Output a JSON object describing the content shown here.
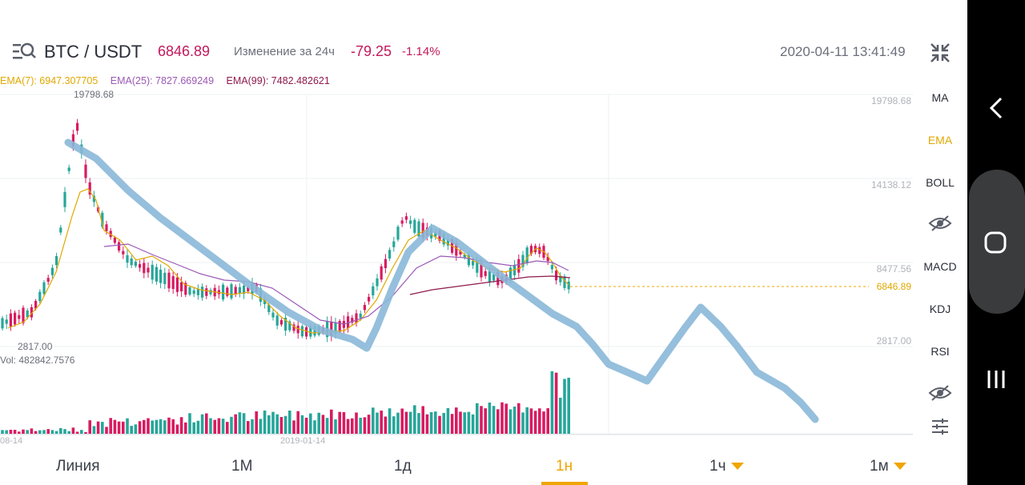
{
  "header": {
    "pair": "BTC / USDT",
    "price": "6846.89",
    "change_label": "Изменение за 24ч",
    "change_abs": "-79.25",
    "change_pct": "-1.14%",
    "datetime": "2020-04-11 13:41:49",
    "menu_icon": "list-search-icon",
    "collapse_icon": "collapse-arrows-icon"
  },
  "ema": {
    "ema7": "EMA(7): 6947.307705",
    "ema25": "EMA(25): 7827.669249",
    "ema99": "EMA(99): 7482.482621"
  },
  "chart": {
    "high_label": "19798.68",
    "low_label": "2817.00",
    "y_ticks": [
      "19798.68",
      "14138.12",
      "8477.56",
      "2817.00"
    ],
    "current_price": "6846.89",
    "volume_label": "Vol: 482842.7576",
    "x_ticks": [
      "08-14",
      "2019-01-14"
    ]
  },
  "side_menu": {
    "items": [
      "MA",
      "EMA",
      "BOLL",
      "MACD",
      "KDJ",
      "RSI"
    ],
    "active": "EMA",
    "icons": [
      "eye-hidden-icon",
      "eye-hidden-icon",
      "settings-sliders-icon"
    ]
  },
  "tabs": {
    "items": [
      "Линия",
      "1М",
      "1д",
      "1н",
      "1ч",
      "1м"
    ],
    "active": "1н"
  },
  "colors": {
    "up": "#26a69a",
    "down": "#d81b60",
    "accent": "#f0a500",
    "stroke": "#8ab8d8"
  },
  "android_nav": [
    "back-icon",
    "home-icon",
    "recents-icon"
  ]
}
